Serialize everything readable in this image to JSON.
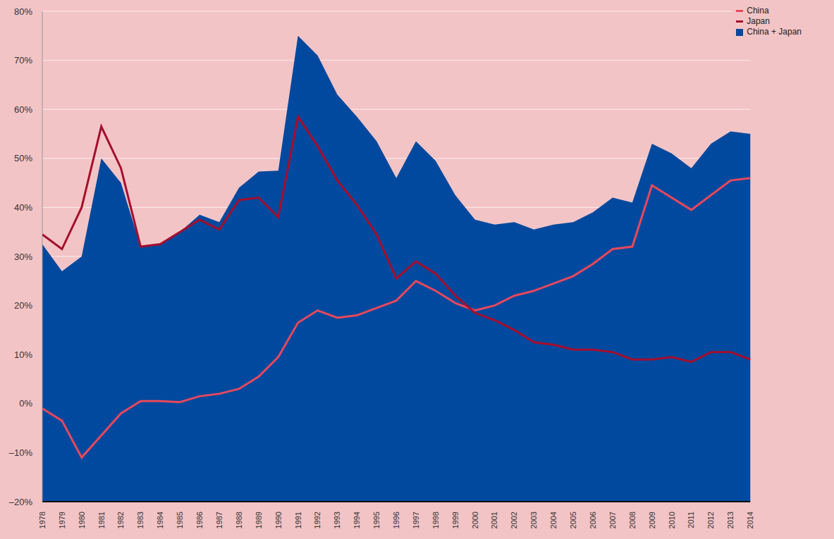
{
  "chart_data": {
    "type": "line",
    "categories": [
      "1978",
      "1979",
      "1980",
      "1981",
      "1982",
      "1983",
      "1984",
      "1985",
      "1986",
      "1987",
      "1988",
      "1989",
      "1990",
      "1991",
      "1992",
      "1993",
      "1994",
      "1995",
      "1996",
      "1997",
      "1998",
      "1999",
      "2000",
      "2001",
      "2002",
      "2003",
      "2004",
      "2005",
      "2006",
      "2007",
      "2008",
      "2009",
      "2010",
      "2011",
      "2012",
      "2013",
      "2014"
    ],
    "series": [
      {
        "name": "China",
        "type": "line",
        "color": "#e8485c",
        "values": [
          -1,
          -3.5,
          -11,
          -6.5,
          -2,
          0.5,
          0.5,
          0.3,
          1.5,
          2,
          3,
          5.5,
          9.5,
          16.5,
          19,
          17.5,
          18,
          19.5,
          21,
          25,
          23,
          20.5,
          19,
          20,
          22,
          23,
          24.5,
          26,
          28.5,
          31.5,
          32,
          44.5,
          42,
          39.5,
          42.5,
          45.5,
          46
        ]
      },
      {
        "name": "Japan",
        "type": "line",
        "color": "#a50e2d",
        "values": [
          34.5,
          31.5,
          40,
          56.5,
          48,
          32,
          32.5,
          35,
          37.5,
          35.5,
          41.5,
          42,
          38,
          58.5,
          52.5,
          45.5,
          40.5,
          34.5,
          25.5,
          29,
          26.5,
          22,
          18.5,
          17,
          15,
          12.5,
          12,
          11,
          11,
          10.5,
          9,
          9,
          9.5,
          8.5,
          10.5,
          10.5,
          9
        ]
      },
      {
        "name": "China + Japan",
        "type": "area",
        "color": "#00499e",
        "values": [
          32.5,
          27,
          30,
          50,
          45,
          32,
          32.5,
          35,
          38.5,
          37,
          44,
          47.3,
          47.5,
          75,
          71,
          63,
          58.5,
          53.5,
          46,
          53.5,
          49.5,
          42.5,
          37.5,
          36.5,
          37,
          35.5,
          36.5,
          37,
          39,
          42,
          41,
          53,
          51,
          48,
          53,
          55.5,
          55
        ]
      }
    ],
    "ylim": [
      -20,
      80
    ],
    "yticks": [
      {
        "value": -20,
        "label": "–20%"
      },
      {
        "value": -10,
        "label": "–10%"
      },
      {
        "value": 0,
        "label": "0%"
      },
      {
        "value": 10,
        "label": "10%"
      },
      {
        "value": 20,
        "label": "20%"
      },
      {
        "value": 30,
        "label": "30%"
      },
      {
        "value": 40,
        "label": "40%"
      },
      {
        "value": 50,
        "label": "50%"
      },
      {
        "value": 60,
        "label": "60%"
      },
      {
        "value": 70,
        "label": "70%"
      },
      {
        "value": 80,
        "label": "80%"
      }
    ],
    "grid": true,
    "legend": "top-right"
  }
}
